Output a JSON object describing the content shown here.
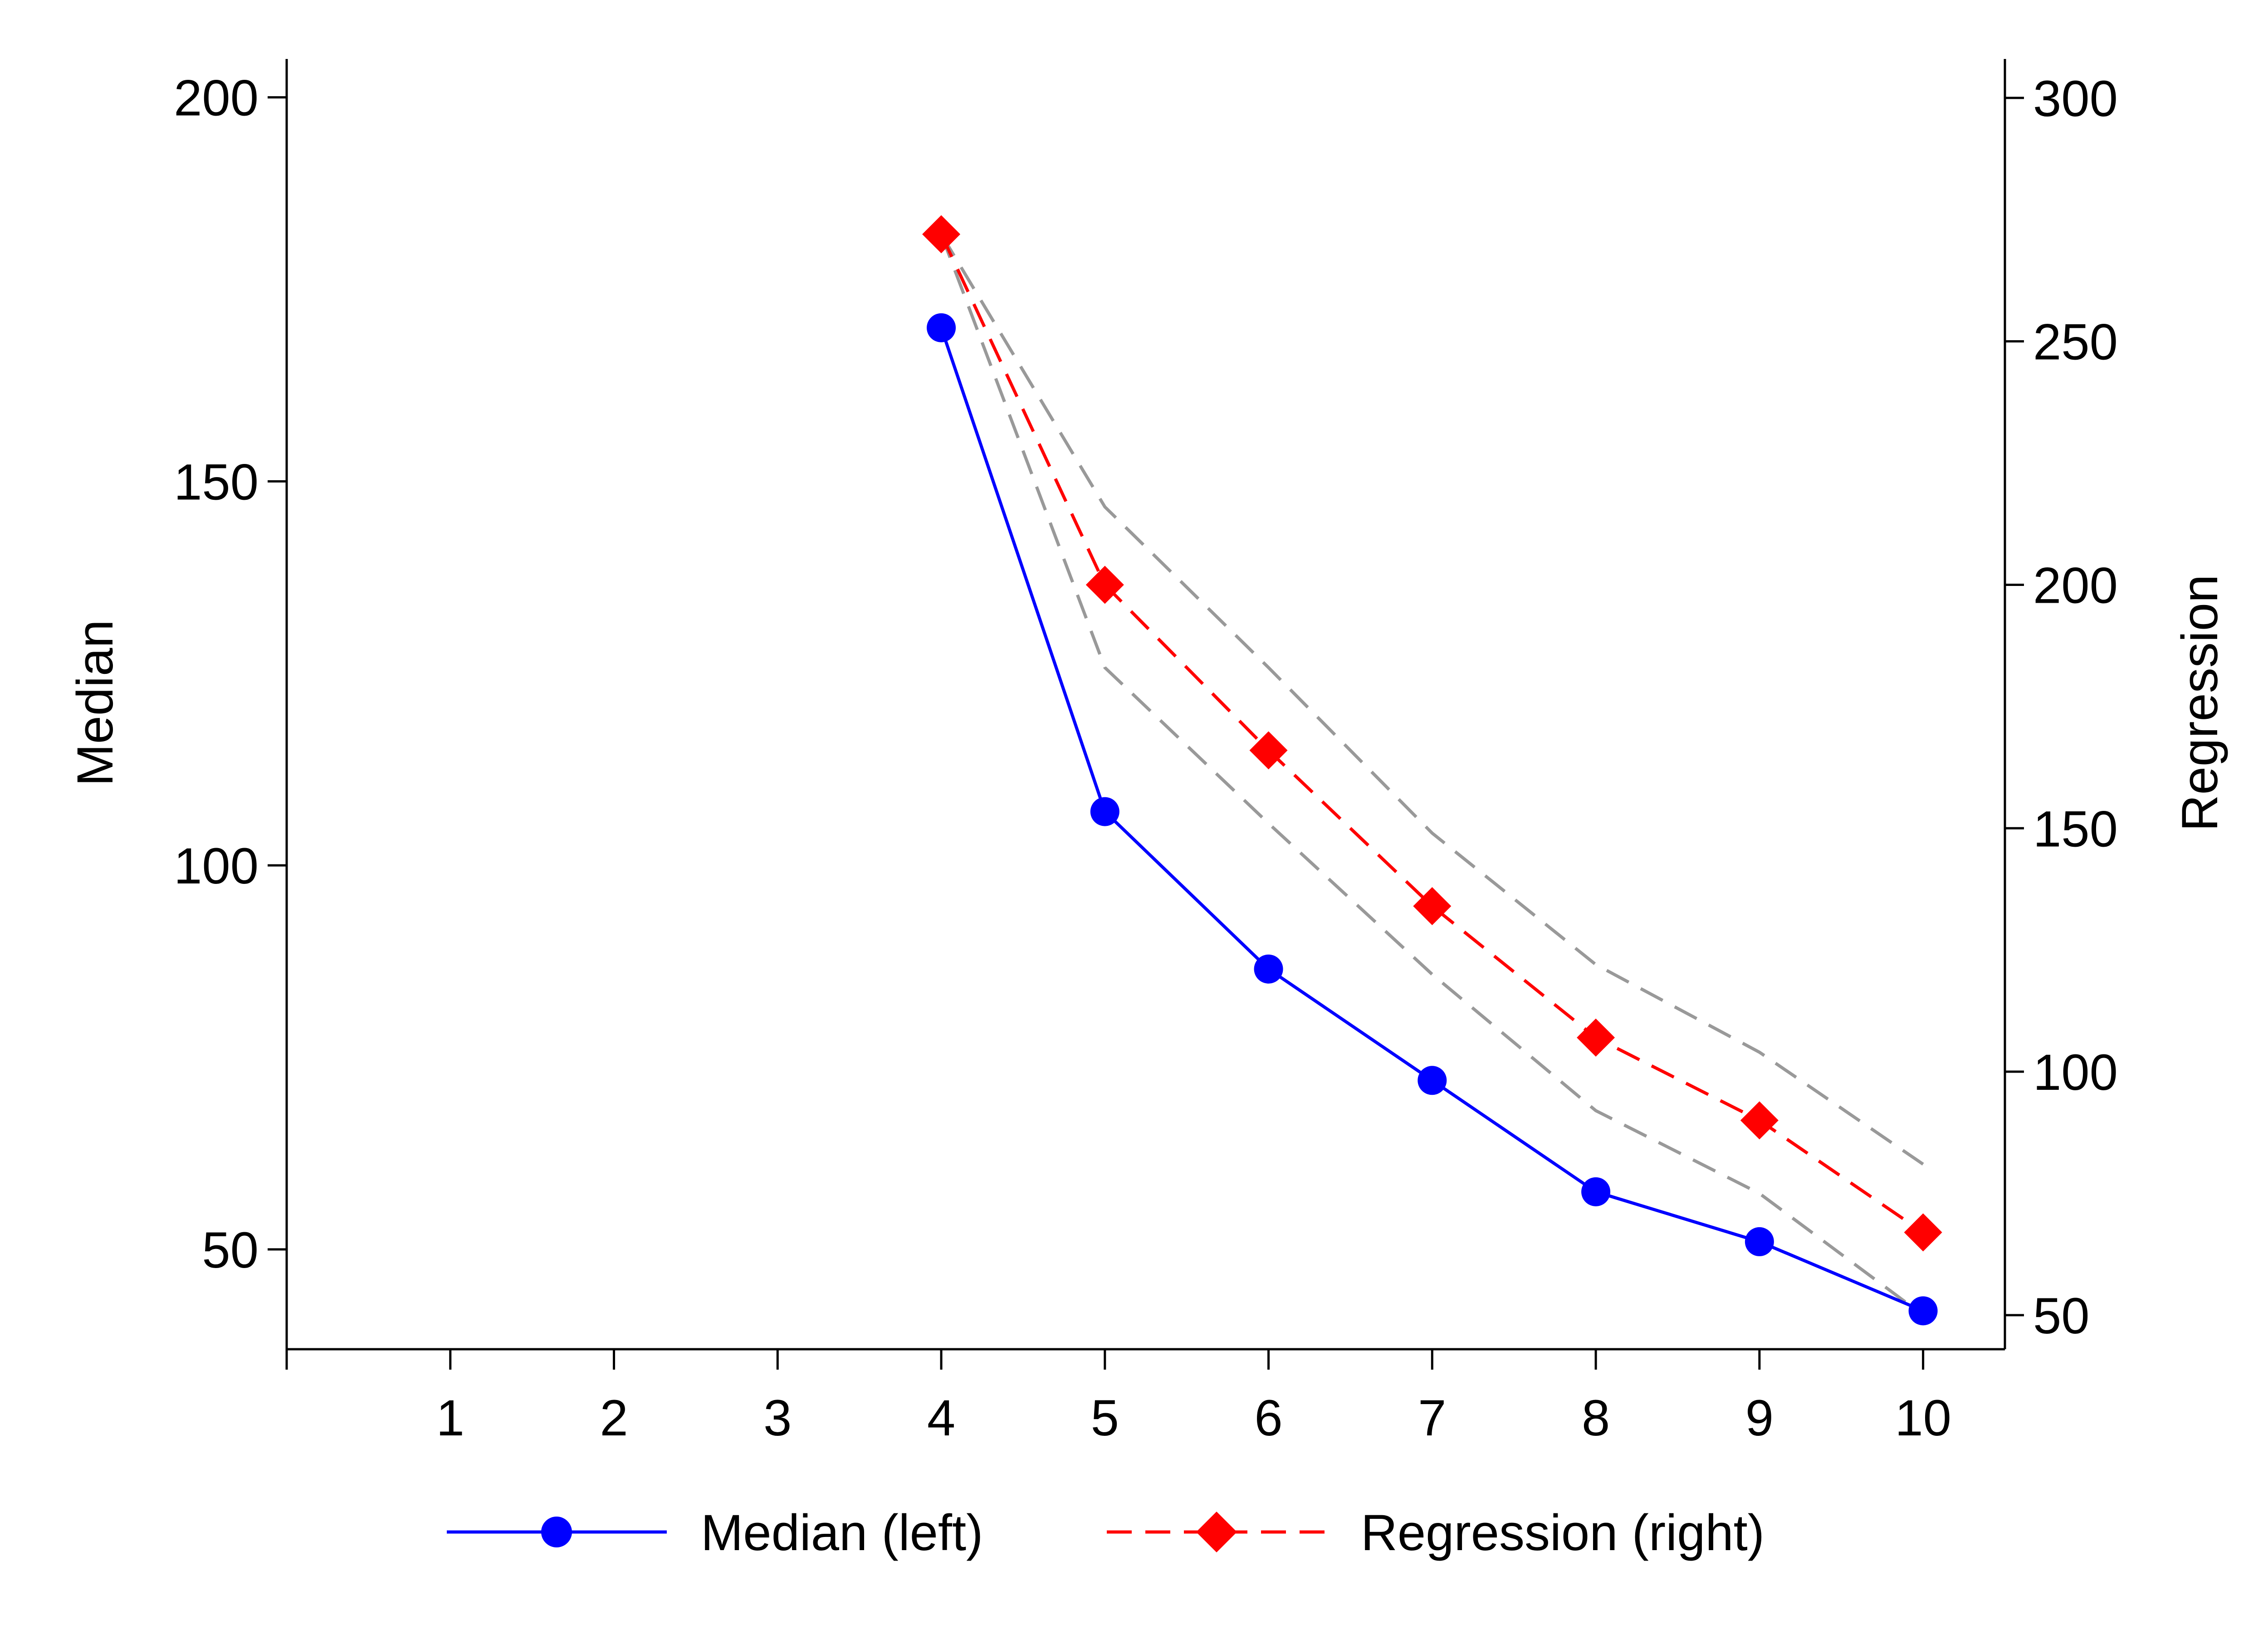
{
  "chart_data": {
    "type": "line",
    "x": [
      4,
      5,
      6,
      7,
      8,
      9,
      10
    ],
    "xticks": [
      1,
      2,
      3,
      4,
      5,
      6,
      7,
      8,
      9,
      10
    ],
    "xlim": [
      0,
      10.5
    ],
    "left_axis": {
      "label": "Median",
      "ylim": [
        37,
        205
      ],
      "ticks": [
        50,
        100,
        150,
        200
      ]
    },
    "right_axis": {
      "label": "Regression",
      "ylim": [
        43,
        308
      ],
      "ticks": [
        50,
        100,
        150,
        200,
        250,
        300
      ]
    },
    "series": [
      {
        "name": "Median (left)",
        "axis": "left",
        "style": "solid",
        "marker": "circle",
        "color": "#0000ff",
        "values": [
          170,
          107,
          86.5,
          72,
          57.5,
          51,
          42
        ]
      },
      {
        "name": "Regression (right)",
        "axis": "right",
        "style": "dashed",
        "marker": "diamond",
        "color": "#ff0000",
        "values": [
          272,
          200,
          166,
          134,
          107,
          90,
          67
        ]
      }
    ],
    "confidence_band": {
      "axis": "right",
      "style": "dashed",
      "color": "#999999",
      "upper": [
        272,
        216,
        183,
        149,
        122,
        104,
        81
      ],
      "lower": [
        272,
        183,
        151,
        120,
        92,
        75,
        50
      ]
    },
    "grid": false,
    "legend_position": "bottom"
  }
}
